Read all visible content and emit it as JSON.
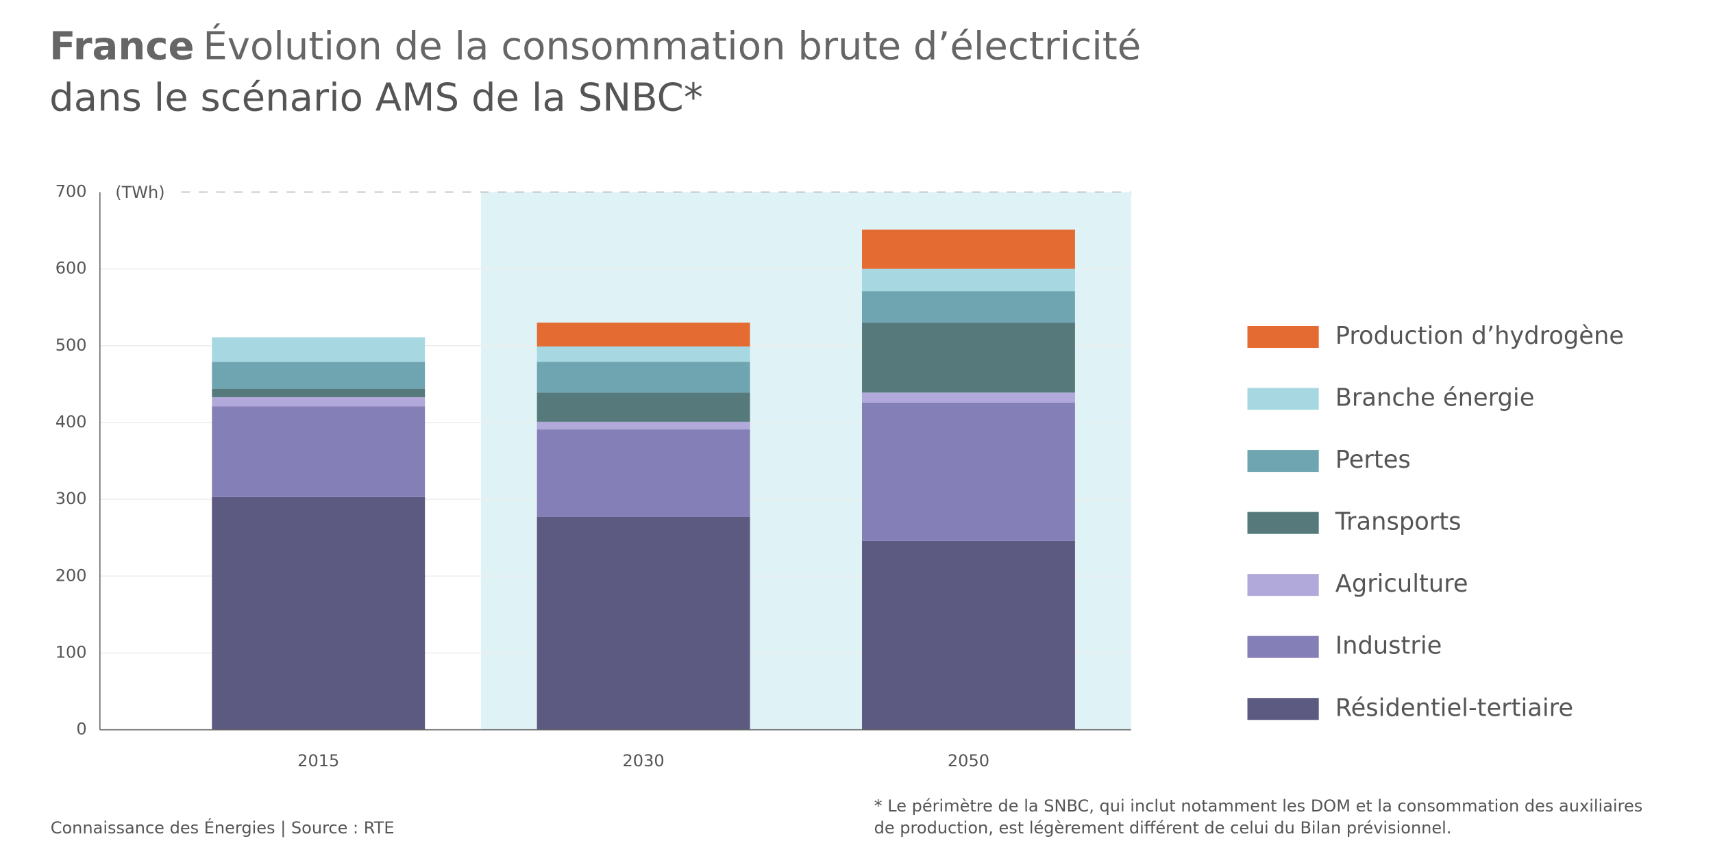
{
  "chart_data": {
    "type": "stacked_bar",
    "title_prefix": "France",
    "title_lines": [
      "Évolution de la consommation brute d’électricité",
      "dans le scénario AMS de la SNBC*"
    ],
    "y_unit": "(TWh)",
    "categories": [
      "2015",
      "2030",
      "2050"
    ],
    "series": [
      {
        "name": "Résidentiel-tertiaire",
        "color": "#5c5a80",
        "values": [
          303,
          277,
          246
        ]
      },
      {
        "name": "Industrie",
        "color": "#857fb7",
        "values": [
          118,
          114,
          180
        ]
      },
      {
        "name": "Agriculture",
        "color": "#b0a9d9",
        "values": [
          12,
          10,
          13
        ]
      },
      {
        "name": "Transports",
        "color": "#567a7c",
        "values": [
          11,
          38,
          91
        ]
      },
      {
        "name": "Pertes",
        "color": "#6fa5b1",
        "values": [
          35,
          40,
          41
        ]
      },
      {
        "name": "Branche énergie",
        "color": "#a7d8e2",
        "values": [
          32,
          20,
          29
        ]
      },
      {
        "name": "Production d’hydrogène",
        "color": "#e46c33",
        "values": [
          0,
          31,
          51
        ]
      }
    ],
    "ylim": [
      0,
      700
    ],
    "yticks": [
      0,
      100,
      200,
      300,
      400,
      500,
      600,
      700
    ],
    "grid": true,
    "legend": "right",
    "shade_from": 1,
    "shade_color": "#dff2f5",
    "source": "Connaissance des Énergies | Source : RTE",
    "footnote_lines": [
      "* Le périmètre de la SNBC, qui inclut notamment les DOM et la consommation des auxiliaires",
      "de production, est légèrement différent de celui du Bilan prévisionnel."
    ]
  }
}
